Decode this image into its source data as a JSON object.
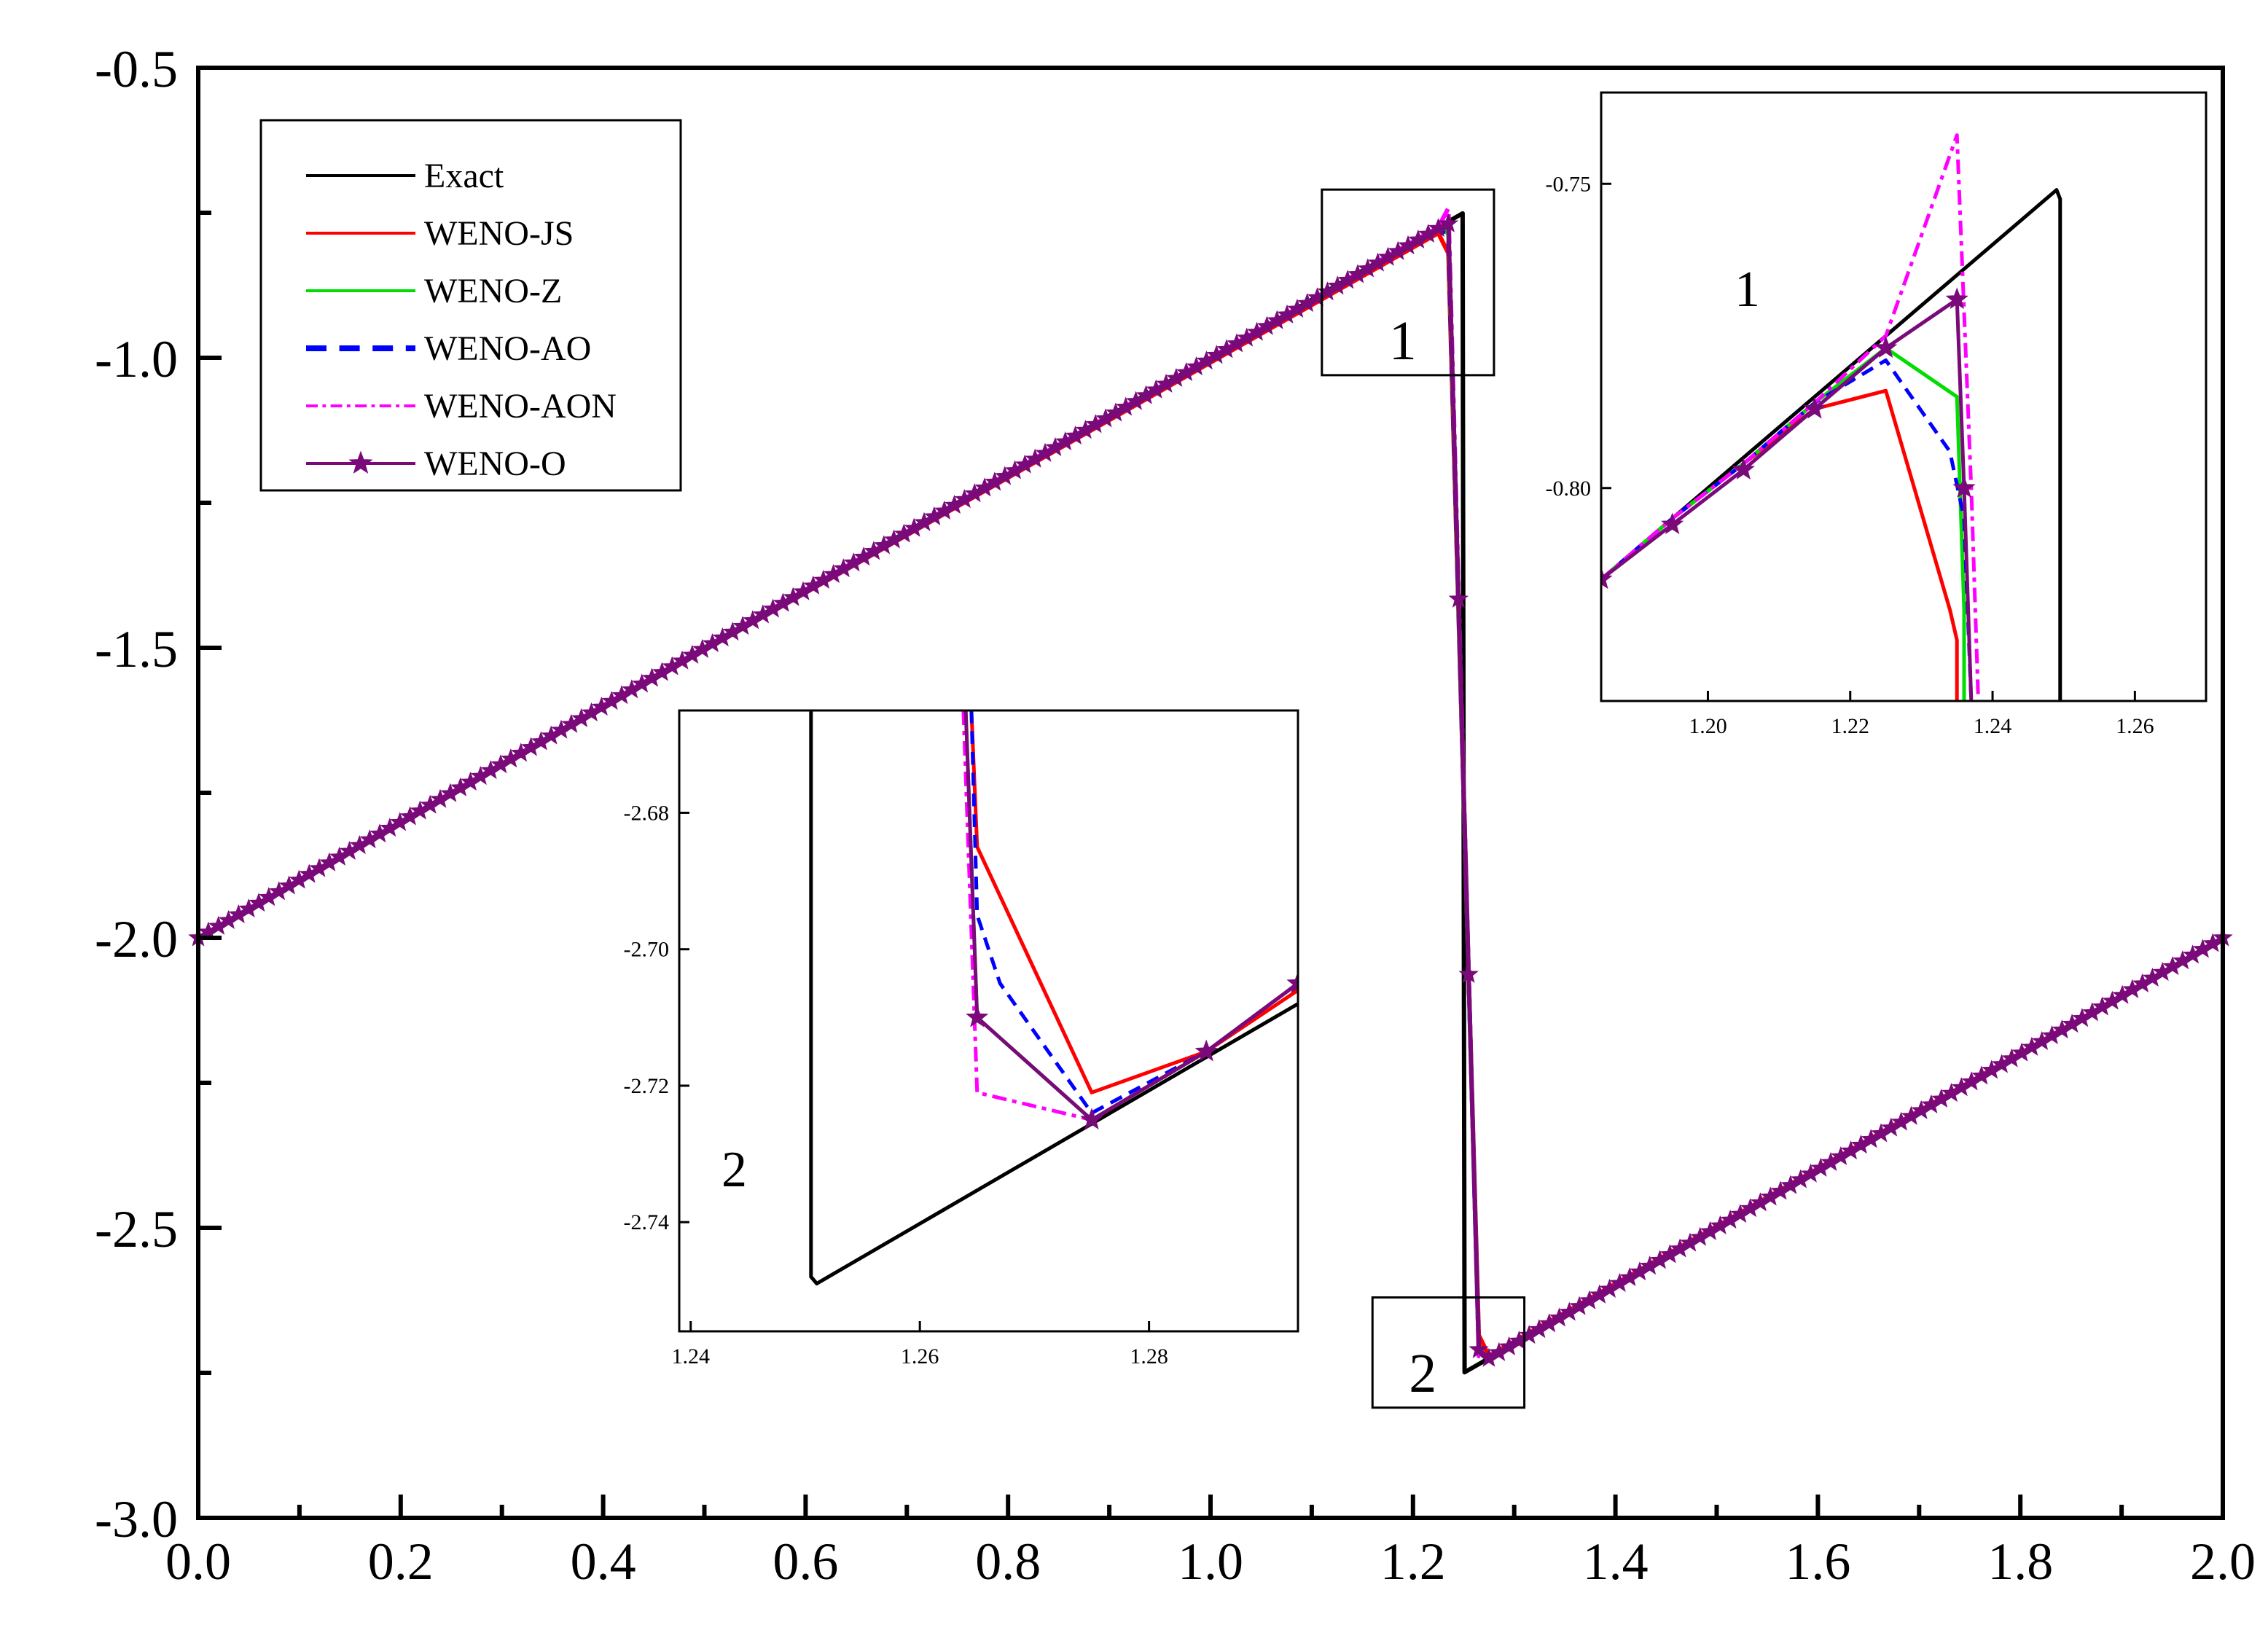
{
  "chart_data": {
    "type": "line",
    "title": "",
    "xlabel": "",
    "ylabel": "",
    "xlim": [
      0.0,
      2.0
    ],
    "ylim": [
      -3.0,
      -0.5
    ],
    "x_ticks": [
      0.0,
      0.2,
      0.4,
      0.6,
      0.8,
      1.0,
      1.2,
      1.4,
      1.6,
      1.8,
      2.0
    ],
    "x_tick_labels": [
      "0.0",
      "0.2",
      "0.4",
      "0.6",
      "0.8",
      "1.0",
      "1.2",
      "1.4",
      "1.6",
      "1.8",
      "2.0"
    ],
    "y_ticks": [
      -3.0,
      -2.5,
      -2.0,
      -1.5,
      -1.0,
      -0.5
    ],
    "y_tick_labels": [
      "-3.0",
      "-2.5",
      "-2.0",
      "-1.5",
      "-1.0",
      "-0.5"
    ],
    "legend_position": "top-left",
    "colors": {
      "exact": "#000000",
      "weno_js": "#ff0000",
      "weno_z": "#00dd00",
      "weno_ao": "#0000ff",
      "weno_aon": "#ff00ff",
      "weno_o": "#7a0a7a"
    },
    "series": [
      {
        "name": "Exact",
        "color": "#000000",
        "style": "solid",
        "x": [
          0.0,
          1.249,
          1.251,
          2.0
        ],
        "y": [
          -2.0,
          -0.751,
          -2.749,
          -2.0
        ]
      },
      {
        "name": "WENO-JS",
        "color": "#ff0000",
        "style": "solid",
        "x": [
          0.0,
          1.225,
          1.235,
          1.265,
          1.275,
          2.0
        ],
        "y": [
          -2.0,
          -0.785,
          -0.82,
          -2.685,
          -2.721,
          -2.0
        ]
      },
      {
        "name": "WENO-Z",
        "color": "#00dd00",
        "style": "solid",
        "x": [
          0.0,
          1.225,
          1.235,
          1.265,
          1.275,
          2.0
        ],
        "y": [
          -2.0,
          -0.777,
          -0.785,
          -2.71,
          -2.725,
          -2.0
        ]
      },
      {
        "name": "WENO-AO",
        "color": "#0000ff",
        "style": "dashed",
        "x": [
          0.0,
          1.225,
          1.235,
          1.265,
          1.275,
          2.0
        ],
        "y": [
          -2.0,
          -0.778,
          -0.79,
          -2.705,
          -2.724,
          -2.0
        ]
      },
      {
        "name": "WENO-AON",
        "color": "#ff00ff",
        "style": "dashdot",
        "x": [
          0.0,
          1.225,
          1.235,
          1.265,
          1.275,
          2.0
        ],
        "y": [
          -2.0,
          -0.775,
          -0.742,
          -2.721,
          -2.725,
          -2.0
        ]
      },
      {
        "name": "WENO-O",
        "color": "#7a0a7a",
        "style": "solid-star",
        "x": [
          0.0,
          1.225,
          1.235,
          1.265,
          1.275,
          2.0
        ],
        "y": [
          -2.0,
          -0.777,
          -0.769,
          -2.71,
          -2.725,
          -2.0
        ]
      }
    ],
    "zoom_boxes": [
      {
        "label": "1",
        "xlim": [
          1.11,
          1.28
        ],
        "ylim": [
          -1.03,
          -0.71
        ]
      },
      {
        "label": "2",
        "xlim": [
          1.16,
          1.31
        ],
        "ylim": [
          -2.81,
          -2.62
        ]
      }
    ],
    "insets": [
      {
        "label": "1",
        "xlim": [
          1.185,
          1.27
        ],
        "ylim": [
          -0.835,
          -0.735
        ],
        "x_ticks": [
          1.2,
          1.22,
          1.24,
          1.26
        ],
        "x_tick_labels": [
          "1.20",
          "1.22",
          "1.24",
          "1.26"
        ],
        "y_ticks": [
          -0.8,
          -0.75
        ],
        "y_tick_labels": [
          "-0.80",
          "-0.75"
        ],
        "series": [
          {
            "name": "Exact",
            "x": [
              1.185,
              1.249,
              1.2495,
              1.2495
            ],
            "y": [
              -0.815,
              -0.751,
              -0.7525,
              -0.835
            ]
          },
          {
            "name": "WENO-JS",
            "x": [
              1.185,
              1.195,
              1.205,
              1.215,
              1.225,
              1.234,
              1.235,
              1.235
            ],
            "y": [
              -0.815,
              -0.805,
              -0.796,
              -0.787,
              -0.784,
              -0.82,
              -0.825,
              -0.835
            ]
          },
          {
            "name": "WENO-Z",
            "x": [
              1.185,
              1.195,
              1.205,
              1.215,
              1.225,
              1.235,
              1.236,
              1.236
            ],
            "y": [
              -0.815,
              -0.805,
              -0.796,
              -0.786,
              -0.777,
              -0.785,
              -0.82,
              -0.835
            ]
          },
          {
            "name": "WENO-AO",
            "x": [
              1.185,
              1.195,
              1.205,
              1.215,
              1.225,
              1.234,
              1.236,
              1.237
            ],
            "y": [
              -0.815,
              -0.805,
              -0.796,
              -0.786,
              -0.779,
              -0.794,
              -0.805,
              -0.835
            ]
          },
          {
            "name": "WENO-AON",
            "x": [
              1.185,
              1.195,
              1.205,
              1.215,
              1.225,
              1.235,
              1.237,
              1.238
            ],
            "y": [
              -0.815,
              -0.805,
              -0.796,
              -0.786,
              -0.775,
              -0.742,
              -0.8,
              -0.835
            ]
          },
          {
            "name": "WENO-O",
            "x": [
              1.185,
              1.195,
              1.205,
              1.215,
              1.225,
              1.235,
              1.236,
              1.237
            ],
            "y": [
              -0.815,
              -0.806,
              -0.797,
              -0.787,
              -0.777,
              -0.769,
              -0.8,
              -0.835
            ]
          }
        ]
      },
      {
        "label": "2",
        "xlim": [
          1.239,
          1.293
        ],
        "ylim": [
          -2.756,
          -2.665
        ],
        "x_ticks": [
          1.24,
          1.26,
          1.28
        ],
        "x_tick_labels": [
          "1.24",
          "1.26",
          "1.28"
        ],
        "y_ticks": [
          -2.74,
          -2.72,
          -2.7,
          -2.68
        ],
        "y_tick_labels": [
          "-2.74",
          "-2.72",
          "-2.70",
          "-2.68"
        ],
        "series": [
          {
            "name": "Exact",
            "x": [
              1.2505,
              1.2505,
              1.251,
              1.293
            ],
            "y": [
              -2.665,
              -2.748,
              -2.749,
              -2.708
            ]
          },
          {
            "name": "WENO-JS",
            "x": [
              1.2645,
              1.265,
              1.275,
              1.285,
              1.293
            ],
            "y": [
              -2.665,
              -2.685,
              -2.721,
              -2.715,
              -2.706
            ]
          },
          {
            "name": "WENO-Z",
            "x": [
              1.264,
              1.265,
              1.275,
              1.285,
              1.293
            ],
            "y": [
              -2.665,
              -2.71,
              -2.725,
              -2.715,
              -2.705
            ]
          },
          {
            "name": "WENO-AO",
            "x": [
              1.2645,
              1.265,
              1.267,
              1.275,
              1.285,
              1.293
            ],
            "y": [
              -2.665,
              -2.695,
              -2.705,
              -2.724,
              -2.715,
              -2.705
            ]
          },
          {
            "name": "WENO-AON",
            "x": [
              1.2638,
              1.265,
              1.275,
              1.285,
              1.293
            ],
            "y": [
              -2.665,
              -2.721,
              -2.725,
              -2.715,
              -2.705
            ]
          },
          {
            "name": "WENO-O",
            "x": [
              1.264,
              1.265,
              1.275,
              1.285,
              1.293
            ],
            "y": [
              -2.665,
              -2.71,
              -2.725,
              -2.715,
              -2.705
            ]
          }
        ]
      }
    ]
  }
}
